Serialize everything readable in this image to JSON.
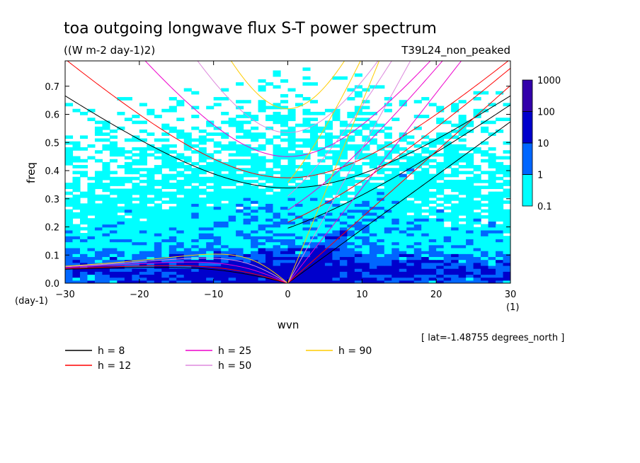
{
  "chart_data": {
    "type": "heatmap",
    "title": "toa outgoing longwave flux S-T power spectrum",
    "subtitle": "((W m-2 day-1)2)",
    "run_label": "T39L24_non_peaked",
    "xlabel": "wvn",
    "ylabel": "freq",
    "x_unit": "(1)",
    "y_unit": "(day-1)",
    "xlim": [
      -30,
      30
    ],
    "ylim": [
      0,
      0.79
    ],
    "x_ticks": [
      -30,
      -20,
      -10,
      0,
      10,
      20,
      30
    ],
    "y_ticks": [
      0.0,
      0.1,
      0.2,
      0.3,
      0.4,
      0.5,
      0.6,
      0.7
    ],
    "colorbar": {
      "levels": [
        0.1,
        1,
        10,
        100,
        1000
      ],
      "labels": [
        "0.1",
        "1",
        "10",
        "100",
        "1000"
      ],
      "colors": [
        "#00ffff",
        "#0066ff",
        "#0000cc",
        "#3300aa"
      ]
    },
    "footnote": "[ lat=-1.48755 degrees_north ]",
    "dispersion_curves": [
      {
        "name": "h =  8",
        "h": 8,
        "color": "#000000"
      },
      {
        "name": "h = 12",
        "h": 12,
        "color": "#ff0000"
      },
      {
        "name": "h = 25",
        "h": 25,
        "color": "#ee00cc"
      },
      {
        "name": "h = 50",
        "h": 50,
        "color": "#dd88dd"
      },
      {
        "name": "h = 90",
        "h": 90,
        "color": "#ffcc00"
      }
    ],
    "grid": false,
    "legend_placement": "bottom-left"
  }
}
